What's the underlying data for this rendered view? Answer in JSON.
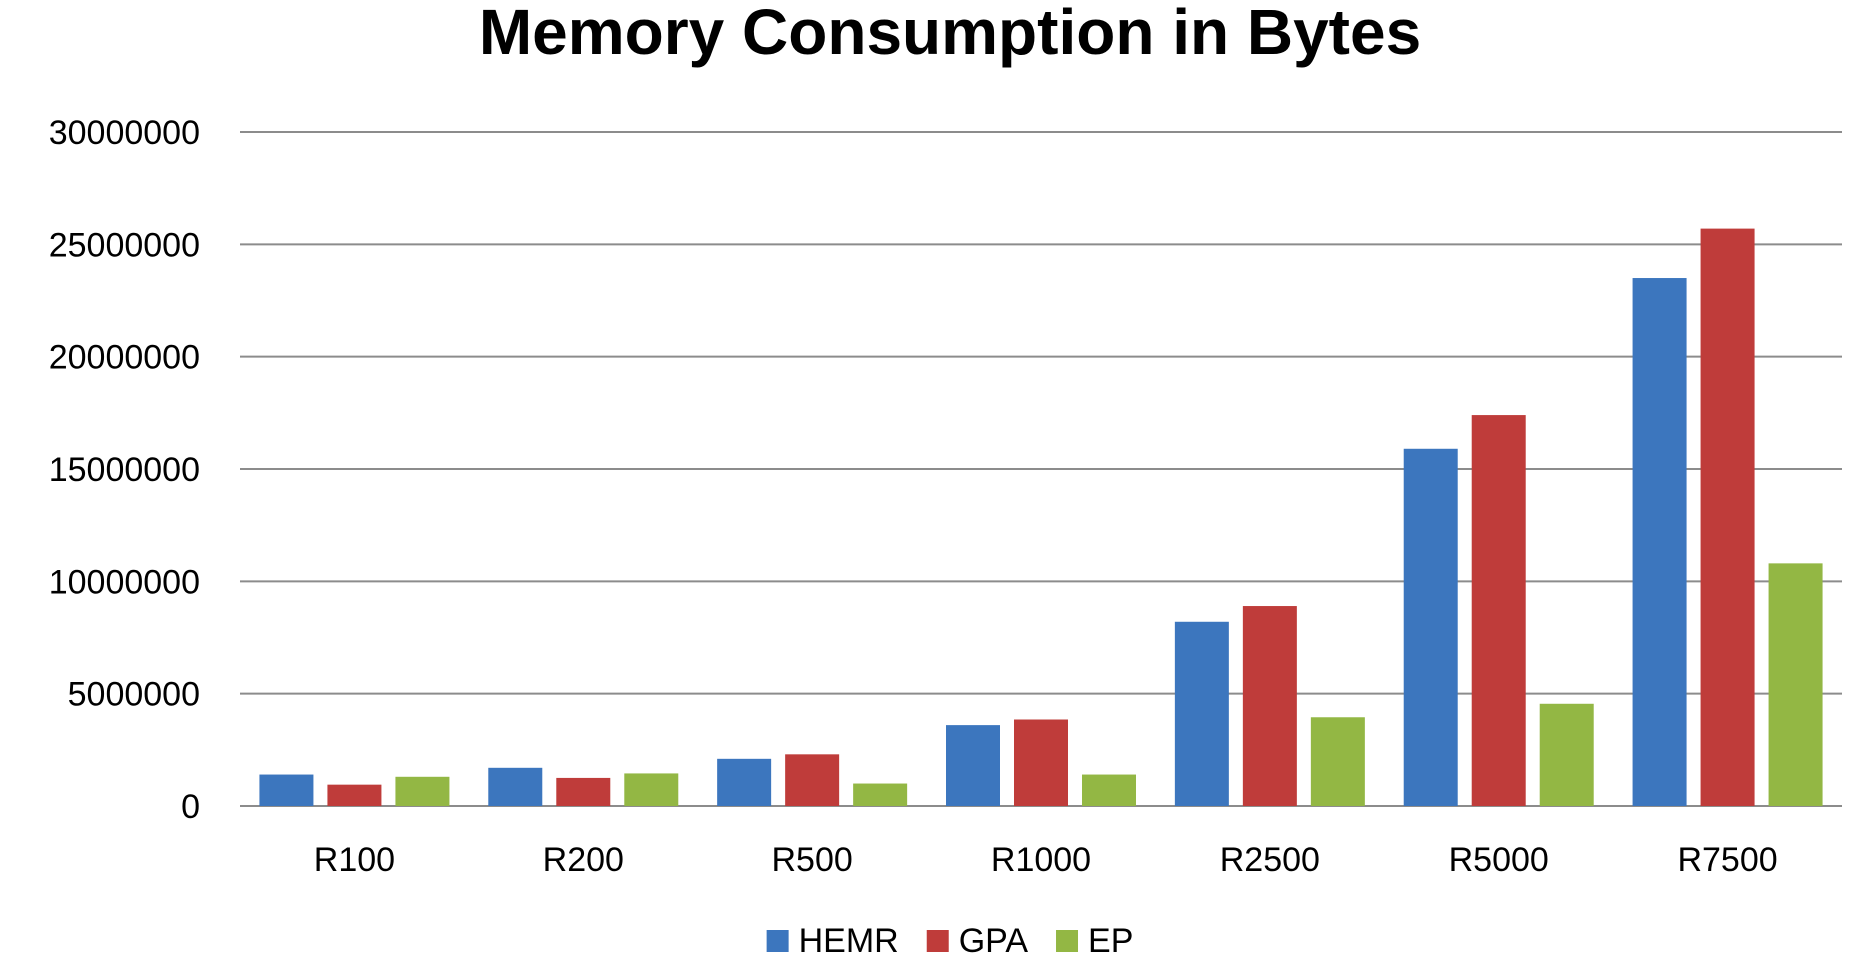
{
  "chart_data": {
    "type": "bar",
    "title": "Memory Consumption in Bytes",
    "xlabel": "",
    "ylabel": "",
    "categories": [
      "R100",
      "R200",
      "R500",
      "R1000",
      "R2500",
      "R5000",
      "R7500"
    ],
    "series": [
      {
        "name": "HEMR",
        "color": "#3c76be",
        "values": [
          1400000,
          1700000,
          2100000,
          3600000,
          8200000,
          15900000,
          23500000
        ]
      },
      {
        "name": "GPA",
        "color": "#bf3c3a",
        "values": [
          950000,
          1250000,
          2300000,
          3850000,
          8900000,
          17400000,
          25700000
        ]
      },
      {
        "name": "EP",
        "color": "#93b744",
        "values": [
          1300000,
          1450000,
          1000000,
          1400000,
          3950000,
          4550000,
          10800000
        ]
      }
    ],
    "ylim": [
      0,
      30000000
    ],
    "yticks": [
      "0",
      "5000000",
      "10000000",
      "15000000",
      "20000000",
      "25000000",
      "30000000"
    ],
    "grid": true,
    "legend_position": "bottom"
  }
}
